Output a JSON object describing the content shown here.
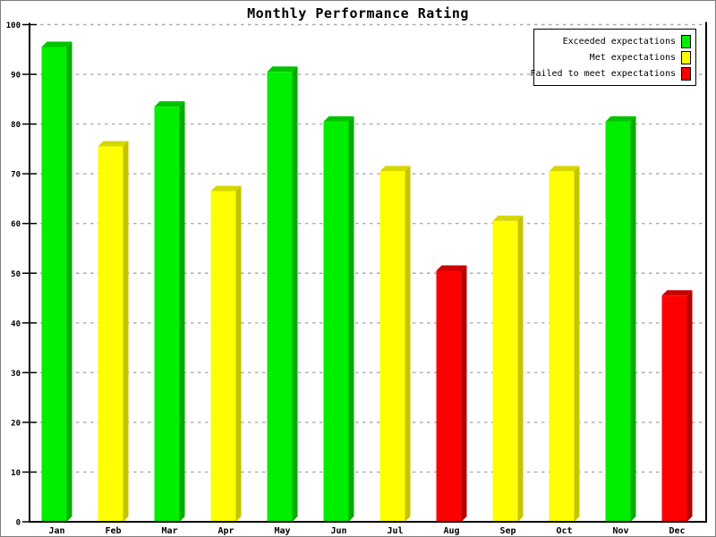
{
  "window": {
    "background": "#ffffff",
    "frame_border_color": "#7f7f7f"
  },
  "chart_data": {
    "type": "bar",
    "title": "Monthly Performance Rating",
    "categories": [
      "Jan",
      "Feb",
      "Mar",
      "Apr",
      "May",
      "Jun",
      "Jul",
      "Aug",
      "Sep",
      "Oct",
      "Nov",
      "Dec"
    ],
    "values": [
      95.5,
      75.5,
      83.5,
      66.5,
      90.5,
      80.5,
      70.5,
      50.5,
      60.5,
      70.5,
      80.5,
      45.5
    ],
    "bar_status": [
      "green",
      "yellow",
      "green",
      "yellow",
      "green",
      "green",
      "yellow",
      "red",
      "yellow",
      "yellow",
      "green",
      "red"
    ],
    "statuses": {
      "green": {
        "label": "Exceeded expectations",
        "front": "#00ee00",
        "top": "#00c300",
        "side": "#00ab00"
      },
      "yellow": {
        "label": "Met expectations",
        "front": "#ffff00",
        "top": "#d6d600",
        "side": "#c4c400"
      },
      "red": {
        "label": "Failed to meet expectations",
        "front": "#ff0000",
        "top": "#c90000",
        "side": "#b20000"
      }
    },
    "legend": [
      {
        "label": "Exceeded expectations",
        "status": "green"
      },
      {
        "label": "Met expectations",
        "status": "yellow"
      },
      {
        "label": "Failed to meet expectations",
        "status": "red"
      }
    ],
    "legend_position": "top-right",
    "xlabel": "",
    "ylabel": "",
    "ylim": [
      0,
      100
    ],
    "yticks": [
      0,
      10,
      20,
      30,
      40,
      50,
      60,
      70,
      80,
      90,
      100
    ],
    "grid": "horizontal-dashed",
    "grid_color": "#ababab",
    "axis_color": "#000000",
    "background": "#ffffff",
    "bar_style": "3d-oblique"
  }
}
